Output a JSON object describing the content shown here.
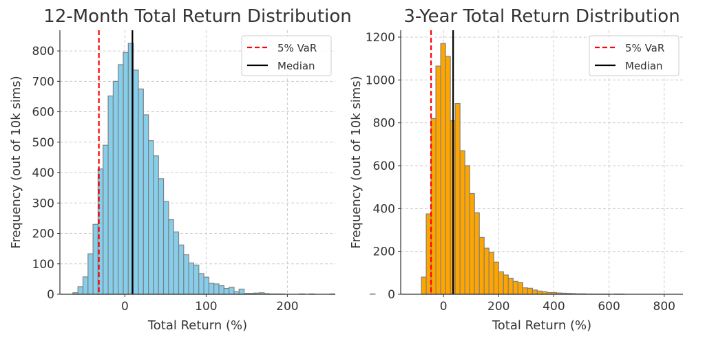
{
  "chart_data": [
    {
      "type": "bar",
      "title": "12-Month Total Return Distribution",
      "xlabel": "Total Return (%)",
      "ylabel": "Frequency (out of 10k sims)",
      "xlim": [
        -80,
        259
      ],
      "ylim": [
        0,
        868
      ],
      "xticks": [
        0,
        100,
        200
      ],
      "yticks": [
        0,
        100,
        200,
        300,
        400,
        500,
        600,
        700,
        800
      ],
      "grid": true,
      "bar_color": "#87ceeb",
      "bin_start": -64,
      "bin_width": 6.2,
      "values": [
        5,
        25,
        57,
        133,
        230,
        412,
        490,
        652,
        700,
        755,
        795,
        825,
        737,
        675,
        590,
        505,
        455,
        380,
        305,
        245,
        205,
        162,
        130,
        103,
        96,
        68,
        56,
        36,
        34,
        28,
        19,
        23,
        9,
        17,
        3,
        3,
        4,
        5,
        2,
        1,
        1,
        1,
        0,
        0,
        0,
        1,
        0,
        1,
        0,
        0,
        0,
        1,
        0,
        0,
        0,
        0,
        0,
        0,
        0,
        1
      ],
      "lines": [
        {
          "label": "5% VaR",
          "value": -32,
          "color": "#ff0000",
          "style": "dashed"
        },
        {
          "label": "Median",
          "value": 9.3,
          "color": "#000000",
          "style": "solid"
        }
      ],
      "legend": "top-right"
    },
    {
      "type": "bar",
      "title": "3-Year Total Return Distribution",
      "xlabel": "Total Return (%)",
      "ylabel": "Frequency (out of 10k sims)",
      "xlim": [
        -155,
        868
      ],
      "ylim": [
        0,
        1232
      ],
      "xticks": [
        0,
        200,
        400,
        600,
        800
      ],
      "yticks": [
        0,
        200,
        400,
        600,
        800,
        1000,
        1200
      ],
      "grid": true,
      "bar_color": "#ffa500",
      "bin_start": -80,
      "bin_width": 17.5,
      "values": [
        80,
        375,
        820,
        1065,
        1170,
        1110,
        810,
        890,
        670,
        600,
        470,
        380,
        265,
        215,
        195,
        150,
        105,
        90,
        75,
        60,
        55,
        30,
        28,
        20,
        15,
        12,
        8,
        8,
        6,
        5,
        4,
        3,
        2,
        2,
        1,
        1,
        1,
        1,
        1,
        0,
        1,
        1
      ],
      "lines": [
        {
          "label": "5% VaR",
          "value": -45,
          "color": "#ff0000",
          "style": "dashed"
        },
        {
          "label": "Median",
          "value": 35,
          "color": "#000000",
          "style": "solid"
        }
      ],
      "legend": "top-right"
    }
  ]
}
